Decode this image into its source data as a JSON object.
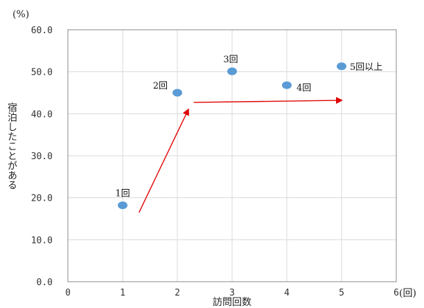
{
  "chart_data": {
    "type": "scatter",
    "x_unit": "(回)",
    "y_unit": "(%)",
    "xlabel": "訪問回数",
    "ylabel": "宿泊したことがある",
    "xlim": [
      0,
      6
    ],
    "ylim": [
      0,
      60
    ],
    "x_ticks": [
      "0",
      "1",
      "2",
      "3",
      "4",
      "5",
      "6"
    ],
    "y_ticks": [
      "0.0",
      "10.0",
      "20.0",
      "30.0",
      "40.0",
      "50.0",
      "60.0"
    ],
    "grid": true,
    "point_color": "#5b9bd5",
    "arrow_color": "#e00000",
    "points": [
      {
        "x": 1,
        "y": 18.2,
        "label": "1回"
      },
      {
        "x": 2,
        "y": 45.0,
        "label": "2回"
      },
      {
        "x": 3,
        "y": 50.1,
        "label": "3回"
      },
      {
        "x": 4,
        "y": 46.8,
        "label": "4回"
      },
      {
        "x": 5,
        "y": 51.3,
        "label": "5回以上"
      }
    ],
    "arrows": [
      {
        "from": [
          1.3,
          16.5
        ],
        "to": [
          2.2,
          41.0
        ]
      },
      {
        "from": [
          2.3,
          42.7
        ],
        "to": [
          5.0,
          43.2
        ]
      }
    ]
  }
}
